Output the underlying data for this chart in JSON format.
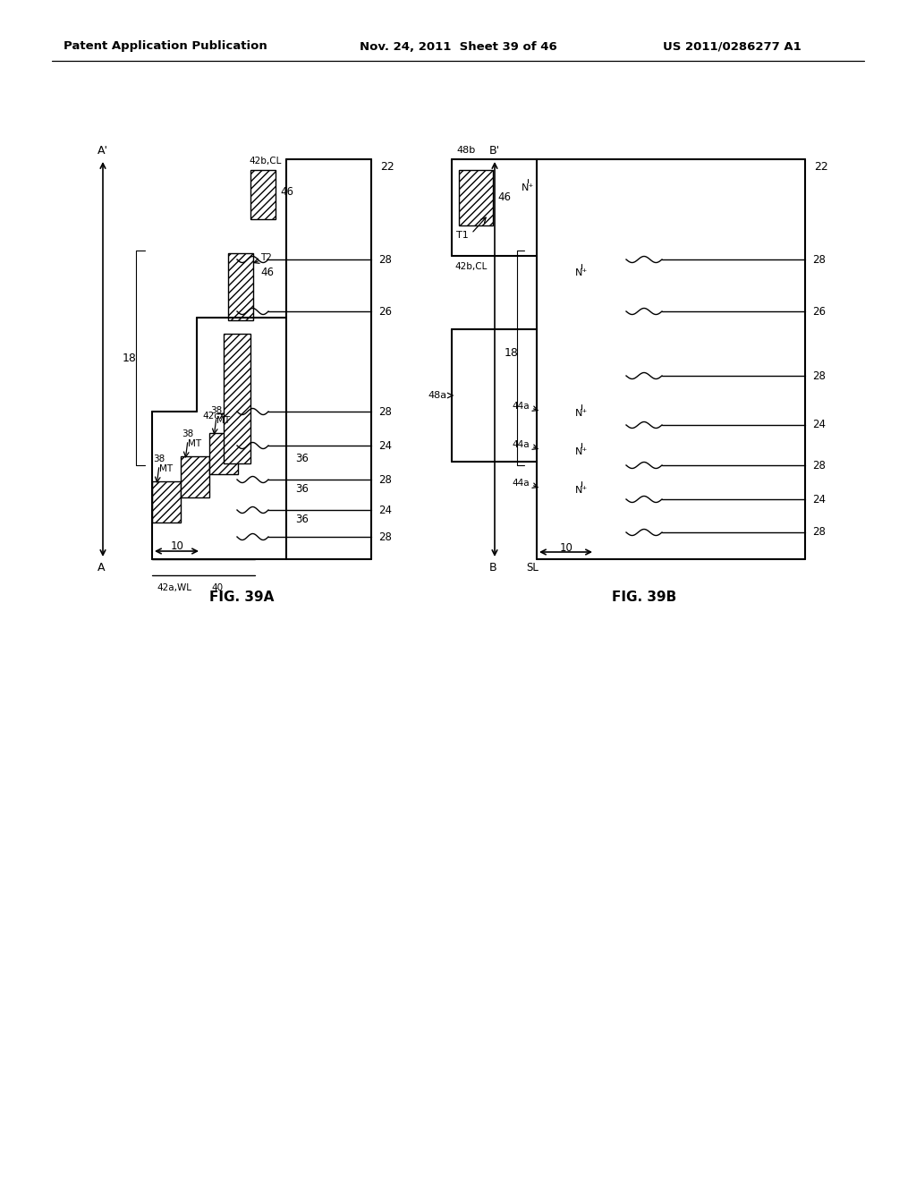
{
  "title_left": "Patent Application Publication",
  "title_mid": "Nov. 24, 2011  Sheet 39 of 46",
  "title_right": "US 2011/0286277 A1",
  "fig_a_label": "FIG. 39A",
  "fig_b_label": "FIG. 39B",
  "bg_color": "#ffffff"
}
